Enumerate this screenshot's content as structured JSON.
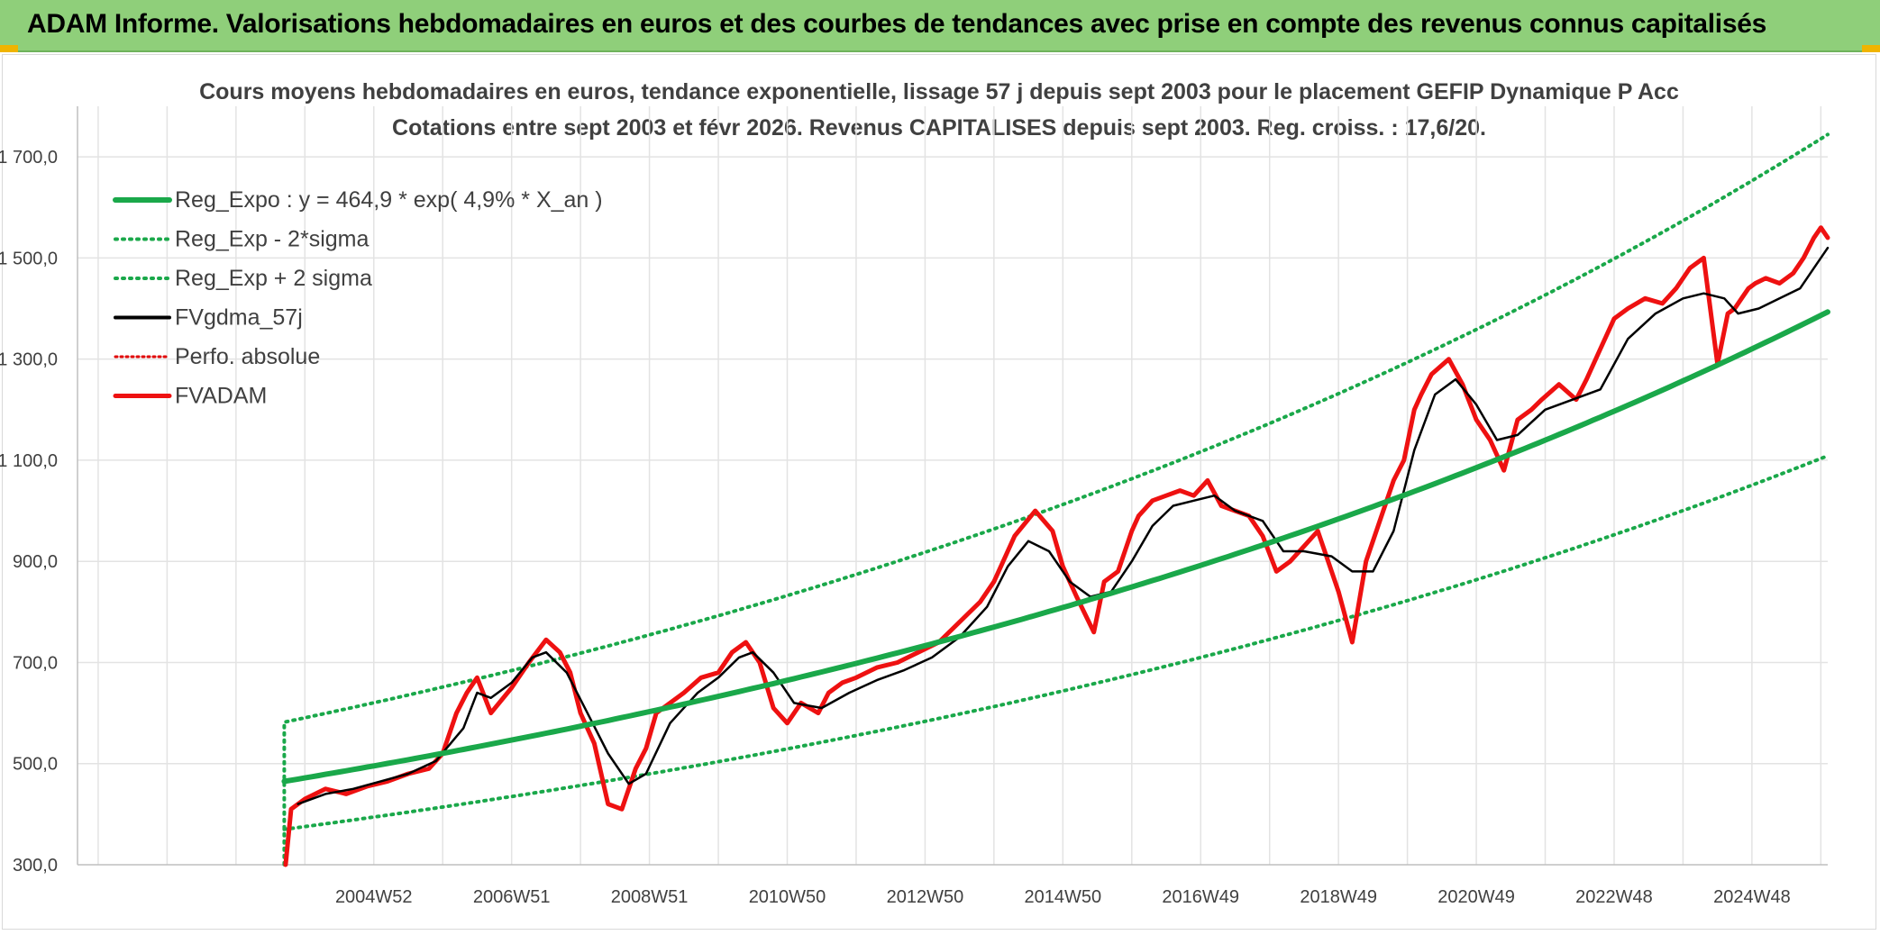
{
  "banner": {
    "title": "ADAM Informe. Valorisations hebdomadaires en euros et des courbes de tendances avec prise en compte des revenus connus capitalisés"
  },
  "chart_data": {
    "type": "line",
    "title": "Cours moyens hebdomadaires en euros, tendance exponentielle, lissage 57 j depuis sept 2003 pour le placement GEFIP Dynamique P Acc",
    "subtitle": "Cotations entre sept 2003 et févr 2026. Revenus CAPITALISES depuis sept 2003. Reg. croiss. : 17,6/20.",
    "xlabel": "",
    "ylabel": "",
    "ylim": [
      300,
      1800
    ],
    "yticks": [
      300,
      500,
      700,
      900,
      1100,
      1300,
      1500,
      1700
    ],
    "ytick_labels": [
      "300,0",
      "500,0",
      "700,0",
      "900,0",
      "1 100,0",
      "1 300,0",
      "1 500,0",
      "1 700,0"
    ],
    "xlim": [
      2000.7,
      2026.1
    ],
    "xticks": [
      2005.0,
      2007.0,
      2009.0,
      2011.0,
      2013.0,
      2015.0,
      2017.0,
      2019.0,
      2021.0,
      2023.0,
      2025.0
    ],
    "xtick_labels": [
      "2004W52",
      "2006W51",
      "2008W51",
      "2010W50",
      "2012W50",
      "2014W50",
      "2016W49",
      "2018W49",
      "2020W49",
      "2022W48",
      "2024W48"
    ],
    "grid": true,
    "legend_position": "top-left",
    "colors": {
      "reg_expo": "#1aa84a",
      "sigma": "#1aa84a",
      "smooth": "#000000",
      "perfo": "#e00000",
      "fvadam": "#ee1111",
      "grid": "#e3e3e3",
      "axis": "#bfbfbf",
      "text": "#404040"
    },
    "series": [
      {
        "name": "Reg_Expo : y = 464,9 * exp( 4,9% *  X_an )",
        "style": "solid-thick",
        "model": {
          "a": 464.9,
          "rate": 0.049,
          "x0": 2003.7,
          "x1": 2026.1
        }
      },
      {
        "name": "Reg_Exp - 2*sigma",
        "style": "dotted",
        "model": {
          "a": 370,
          "rate": 0.049,
          "x0": 2003.7,
          "x1": 2026.1
        }
      },
      {
        "name": "Reg_Exp + 2 sigma",
        "style": "dotted",
        "model": {
          "a": 582,
          "rate": 0.049,
          "x0": 2003.7,
          "x1": 2026.1
        }
      },
      {
        "name": "FVgdma_57j",
        "style": "solid",
        "key": "smooth"
      },
      {
        "name": "Perfo. absolue",
        "style": "dotted",
        "key": "perfo"
      },
      {
        "name": "FVADAM",
        "style": "solid-thick",
        "key": "fvadam"
      }
    ],
    "fvadam": {
      "x": [
        2003.72,
        2003.8,
        2004.0,
        2004.3,
        2004.6,
        2004.9,
        2005.2,
        2005.5,
        2005.8,
        2006.0,
        2006.2,
        2006.35,
        2006.5,
        2006.7,
        2007.0,
        2007.25,
        2007.5,
        2007.7,
        2007.85,
        2008.0,
        2008.2,
        2008.4,
        2008.6,
        2008.8,
        2008.95,
        2009.1,
        2009.3,
        2009.5,
        2009.75,
        2010.0,
        2010.2,
        2010.4,
        2010.6,
        2010.8,
        2011.0,
        2011.2,
        2011.45,
        2011.6,
        2011.8,
        2012.0,
        2012.3,
        2012.6,
        2012.9,
        2013.2,
        2013.5,
        2013.8,
        2014.0,
        2014.3,
        2014.6,
        2014.85,
        2015.0,
        2015.2,
        2015.45,
        2015.6,
        2015.8,
        2016.0,
        2016.1,
        2016.3,
        2016.5,
        2016.7,
        2016.9,
        2017.1,
        2017.3,
        2017.5,
        2017.7,
        2017.9,
        2018.1,
        2018.3,
        2018.5,
        2018.7,
        2018.85,
        2019.0,
        2019.2,
        2019.4,
        2019.6,
        2019.8,
        2019.95,
        2020.1,
        2020.2,
        2020.35,
        2020.6,
        2020.8,
        2021.0,
        2021.2,
        2021.4,
        2021.6,
        2021.8,
        2021.95,
        2022.2,
        2022.45,
        2022.6,
        2022.8,
        2023.0,
        2023.2,
        2023.45,
        2023.7,
        2023.9,
        2024.1,
        2024.3,
        2024.5,
        2024.65,
        2024.75,
        2024.85,
        2024.95,
        2025.05,
        2025.2,
        2025.4,
        2025.6,
        2025.75,
        2025.9,
        2026.0,
        2026.1
      ],
      "y": [
        300,
        410,
        430,
        450,
        440,
        455,
        465,
        480,
        490,
        520,
        600,
        640,
        670,
        600,
        650,
        700,
        745,
        720,
        680,
        600,
        540,
        420,
        410,
        490,
        530,
        600,
        620,
        640,
        670,
        680,
        720,
        740,
        700,
        610,
        580,
        620,
        600,
        640,
        660,
        670,
        690,
        700,
        720,
        740,
        780,
        820,
        860,
        950,
        1000,
        960,
        890,
        830,
        760,
        860,
        880,
        960,
        990,
        1020,
        1030,
        1040,
        1030,
        1060,
        1010,
        1000,
        990,
        950,
        880,
        900,
        930,
        960,
        900,
        840,
        740,
        900,
        980,
        1060,
        1100,
        1200,
        1230,
        1270,
        1300,
        1250,
        1180,
        1140,
        1080,
        1180,
        1200,
        1220,
        1250,
        1220,
        1260,
        1320,
        1380,
        1400,
        1420,
        1410,
        1440,
        1480,
        1500,
        1290,
        1390,
        1400,
        1420,
        1440,
        1450,
        1460,
        1450,
        1470,
        1500,
        1540,
        1560,
        1540
      ]
    },
    "fvgdma_57j": {
      "x": [
        2003.9,
        2004.3,
        2004.7,
        2005.1,
        2005.5,
        2005.9,
        2006.3,
        2006.5,
        2006.7,
        2007.0,
        2007.3,
        2007.5,
        2007.8,
        2008.1,
        2008.4,
        2008.7,
        2008.95,
        2009.3,
        2009.7,
        2010.0,
        2010.3,
        2010.5,
        2010.8,
        2011.1,
        2011.5,
        2011.9,
        2012.3,
        2012.7,
        2013.1,
        2013.5,
        2013.9,
        2014.2,
        2014.5,
        2014.8,
        2015.1,
        2015.4,
        2015.7,
        2016.0,
        2016.3,
        2016.6,
        2016.9,
        2017.2,
        2017.5,
        2017.9,
        2018.2,
        2018.5,
        2018.9,
        2019.2,
        2019.5,
        2019.8,
        2020.1,
        2020.4,
        2020.7,
        2021.0,
        2021.3,
        2021.6,
        2022.0,
        2022.4,
        2022.8,
        2023.2,
        2023.6,
        2024.0,
        2024.3,
        2024.6,
        2024.8,
        2025.1,
        2025.4,
        2025.7,
        2025.9,
        2026.1
      ],
      "y": [
        420,
        440,
        450,
        465,
        480,
        505,
        570,
        640,
        630,
        660,
        710,
        720,
        680,
        600,
        520,
        460,
        480,
        580,
        640,
        670,
        710,
        720,
        680,
        620,
        610,
        640,
        665,
        685,
        710,
        750,
        810,
        890,
        940,
        920,
        860,
        830,
        840,
        900,
        970,
        1010,
        1020,
        1030,
        1000,
        980,
        920,
        920,
        910,
        880,
        880,
        960,
        1120,
        1230,
        1260,
        1210,
        1140,
        1150,
        1200,
        1220,
        1240,
        1340,
        1390,
        1420,
        1430,
        1420,
        1390,
        1400,
        1420,
        1440,
        1480,
        1520
      ]
    }
  }
}
